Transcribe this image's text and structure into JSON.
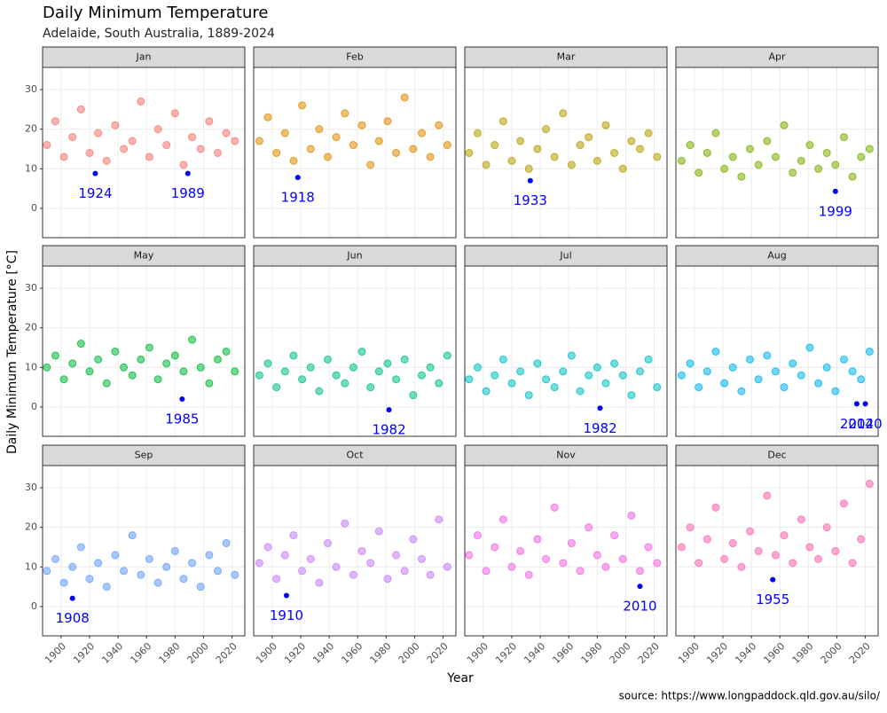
{
  "title": "Daily Minimum Temperature",
  "subtitle": "Adelaide, South Australia, 1889-2024",
  "xlabel": "Year",
  "ylabel": "Daily Minimum Temperature [°C]",
  "source": "source: https://www.longpaddock.qld.gov.au/silo/",
  "record_color": "#0000ff",
  "axes": {
    "xlim": [
      1887,
      2029
    ],
    "xticks": [
      1900,
      1920,
      1940,
      1960,
      1980,
      2000,
      2020
    ],
    "ylim": [
      -7.4,
      35.6
    ],
    "yticks": [
      0,
      10,
      20,
      30
    ],
    "grid": true
  },
  "chart_data": [
    {
      "type": "scatter",
      "title": "Jan",
      "color": "#F8766D",
      "x": [
        1890,
        1896,
        1902,
        1908,
        1914,
        1920,
        1926,
        1932,
        1938,
        1944,
        1950,
        1956,
        1962,
        1968,
        1974,
        1980,
        1986,
        1992,
        1998,
        2004,
        2010,
        2016,
        2022
      ],
      "values": [
        16,
        22,
        13,
        18,
        25,
        14,
        19,
        12,
        21,
        15,
        17,
        27,
        13,
        20,
        16,
        24,
        11,
        18,
        15,
        22,
        14,
        19,
        17
      ],
      "records": [
        {
          "year": 1924,
          "value": 8.8
        },
        {
          "year": 1989,
          "value": 8.8
        }
      ]
    },
    {
      "type": "scatter",
      "title": "Feb",
      "color": "#DE8C00",
      "x": [
        1891,
        1897,
        1903,
        1909,
        1915,
        1921,
        1927,
        1933,
        1939,
        1945,
        1951,
        1957,
        1963,
        1969,
        1975,
        1981,
        1987,
        1993,
        1999,
        2005,
        2011,
        2017,
        2023
      ],
      "values": [
        17,
        23,
        14,
        19,
        12,
        26,
        15,
        20,
        13,
        18,
        24,
        16,
        21,
        11,
        17,
        22,
        14,
        28,
        15,
        19,
        13,
        21,
        16
      ],
      "records": [
        {
          "year": 1918,
          "value": 7.8
        }
      ]
    },
    {
      "type": "scatter",
      "title": "Mar",
      "color": "#B79F00",
      "x": [
        1890,
        1896,
        1902,
        1908,
        1914,
        1920,
        1926,
        1932,
        1938,
        1944,
        1950,
        1956,
        1962,
        1968,
        1974,
        1980,
        1986,
        1992,
        1998,
        2004,
        2010,
        2016,
        2022
      ],
      "values": [
        14,
        19,
        11,
        16,
        22,
        12,
        17,
        10,
        15,
        20,
        13,
        24,
        11,
        16,
        18,
        12,
        21,
        14,
        10,
        17,
        15,
        19,
        13
      ],
      "records": [
        {
          "year": 1933,
          "value": 7.0
        }
      ]
    },
    {
      "type": "scatter",
      "title": "Apr",
      "color": "#7CAE00",
      "x": [
        1891,
        1897,
        1903,
        1909,
        1915,
        1921,
        1927,
        1933,
        1939,
        1945,
        1951,
        1957,
        1963,
        1969,
        1975,
        1981,
        1987,
        1993,
        1999,
        2005,
        2011,
        2017,
        2023
      ],
      "values": [
        12,
        16,
        9,
        14,
        19,
        10,
        13,
        8,
        15,
        11,
        17,
        13,
        21,
        9,
        12,
        16,
        10,
        14,
        11,
        18,
        8,
        13,
        15
      ],
      "records": [
        {
          "year": 1999,
          "value": 4.3
        }
      ]
    },
    {
      "type": "scatter",
      "title": "May",
      "color": "#00BA38",
      "x": [
        1890,
        1896,
        1902,
        1908,
        1914,
        1920,
        1926,
        1932,
        1938,
        1944,
        1950,
        1956,
        1962,
        1968,
        1974,
        1980,
        1986,
        1992,
        1998,
        2004,
        2010,
        2016,
        2022
      ],
      "values": [
        10,
        13,
        7,
        11,
        16,
        9,
        12,
        6,
        14,
        10,
        8,
        12,
        15,
        7,
        11,
        13,
        9,
        17,
        10,
        6,
        12,
        14,
        9
      ],
      "records": [
        {
          "year": 1985,
          "value": 2.0
        }
      ]
    },
    {
      "type": "scatter",
      "title": "Jun",
      "color": "#00C08B",
      "x": [
        1891,
        1897,
        1903,
        1909,
        1915,
        1921,
        1927,
        1933,
        1939,
        1945,
        1951,
        1957,
        1963,
        1969,
        1975,
        1981,
        1987,
        1993,
        1999,
        2005,
        2011,
        2017,
        2023
      ],
      "values": [
        8,
        11,
        5,
        9,
        13,
        7,
        10,
        4,
        12,
        8,
        6,
        10,
        14,
        5,
        9,
        11,
        7,
        12,
        3,
        8,
        10,
        6,
        13
      ],
      "records": [
        {
          "year": 1982,
          "value": -0.7
        }
      ]
    },
    {
      "type": "scatter",
      "title": "Jul",
      "color": "#00BFC4",
      "x": [
        1890,
        1896,
        1902,
        1908,
        1914,
        1920,
        1926,
        1932,
        1938,
        1944,
        1950,
        1956,
        1962,
        1968,
        1974,
        1980,
        1986,
        1992,
        1998,
        2004,
        2010,
        2016,
        2022
      ],
      "values": [
        7,
        10,
        4,
        8,
        12,
        6,
        9,
        3,
        11,
        7,
        5,
        9,
        13,
        4,
        8,
        10,
        6,
        11,
        8,
        3,
        9,
        12,
        5
      ],
      "records": [
        {
          "year": 1982,
          "value": -0.3
        }
      ]
    },
    {
      "type": "scatter",
      "title": "Aug",
      "color": "#00B4F0",
      "x": [
        1891,
        1897,
        1903,
        1909,
        1915,
        1921,
        1927,
        1933,
        1939,
        1945,
        1951,
        1957,
        1963,
        1969,
        1975,
        1981,
        1987,
        1993,
        1999,
        2005,
        2011,
        2017,
        2023
      ],
      "values": [
        8,
        11,
        5,
        9,
        14,
        6,
        10,
        4,
        12,
        7,
        13,
        9,
        5,
        11,
        8,
        15,
        6,
        10,
        4,
        12,
        9,
        7,
        14
      ],
      "records": [
        {
          "year": 2014,
          "value": 0.8
        },
        {
          "year": 2020,
          "value": 0.8
        }
      ]
    },
    {
      "type": "scatter",
      "title": "Sep",
      "color": "#619CFF",
      "x": [
        1890,
        1896,
        1902,
        1908,
        1914,
        1920,
        1926,
        1932,
        1938,
        1944,
        1950,
        1956,
        1962,
        1968,
        1974,
        1980,
        1986,
        1992,
        1998,
        2004,
        2010,
        2016,
        2022
      ],
      "values": [
        9,
        12,
        6,
        10,
        15,
        7,
        11,
        5,
        13,
        9,
        18,
        8,
        12,
        6,
        10,
        14,
        7,
        11,
        5,
        13,
        9,
        16,
        8
      ],
      "records": [
        {
          "year": 1908,
          "value": 2.1
        }
      ]
    },
    {
      "type": "scatter",
      "title": "Oct",
      "color": "#C77CFF",
      "x": [
        1891,
        1897,
        1903,
        1909,
        1915,
        1921,
        1927,
        1933,
        1939,
        1945,
        1951,
        1957,
        1963,
        1969,
        1975,
        1981,
        1987,
        1993,
        1999,
        2005,
        2011,
        2017,
        2023
      ],
      "values": [
        11,
        15,
        7,
        13,
        18,
        9,
        12,
        6,
        16,
        10,
        21,
        8,
        14,
        11,
        19,
        7,
        13,
        9,
        17,
        12,
        8,
        22,
        10
      ],
      "records": [
        {
          "year": 1910,
          "value": 2.8
        }
      ]
    },
    {
      "type": "scatter",
      "title": "Nov",
      "color": "#F564E3",
      "x": [
        1890,
        1896,
        1902,
        1908,
        1914,
        1920,
        1926,
        1932,
        1938,
        1944,
        1950,
        1956,
        1962,
        1968,
        1974,
        1980,
        1986,
        1992,
        1998,
        2004,
        2010,
        2016,
        2022
      ],
      "values": [
        13,
        18,
        9,
        15,
        22,
        10,
        14,
        8,
        17,
        12,
        25,
        11,
        16,
        9,
        20,
        13,
        10,
        18,
        12,
        23,
        9,
        15,
        11
      ],
      "records": [
        {
          "year": 2010,
          "value": 5.1
        }
      ]
    },
    {
      "type": "scatter",
      "title": "Dec",
      "color": "#FF64B0",
      "x": [
        1891,
        1897,
        1903,
        1909,
        1915,
        1921,
        1927,
        1933,
        1939,
        1945,
        1951,
        1957,
        1963,
        1969,
        1975,
        1981,
        1987,
        1993,
        1999,
        2005,
        2011,
        2017,
        2023
      ],
      "values": [
        15,
        20,
        11,
        17,
        25,
        12,
        16,
        10,
        19,
        14,
        28,
        13,
        18,
        11,
        22,
        15,
        12,
        20,
        14,
        26,
        11,
        17,
        31
      ],
      "records": [
        {
          "year": 1955,
          "value": 6.8
        }
      ]
    }
  ]
}
